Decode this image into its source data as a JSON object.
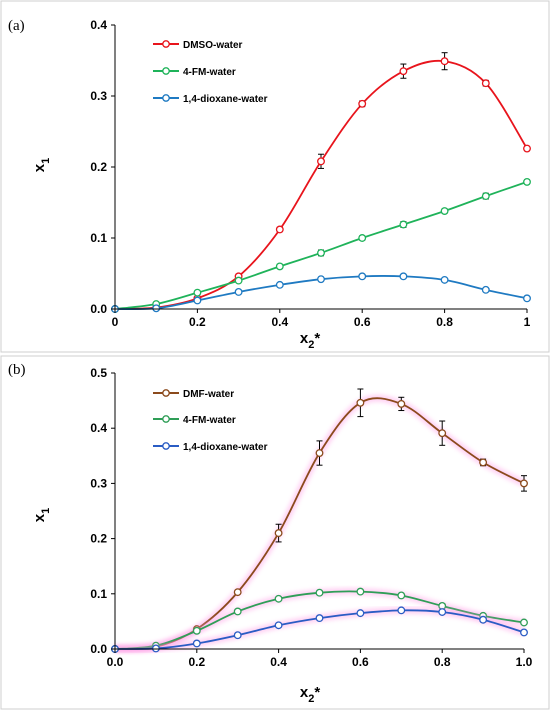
{
  "chart_data": [
    {
      "type": "line",
      "panel_label": "(a)",
      "xlabel": "x",
      "xlabel_sub": "2",
      "xlabel_suffix": "*",
      "ylabel": "x",
      "ylabel_sub": "1",
      "xlim": [
        0,
        1
      ],
      "ylim": [
        0,
        0.4
      ],
      "x_ticks": [
        0,
        0.2,
        0.4,
        0.6,
        0.8,
        1
      ],
      "x_tick_labels": [
        "0",
        "0.2",
        "0.4",
        "0.6",
        "0.8",
        "1"
      ],
      "y_ticks": [
        0,
        0.1,
        0.2,
        0.3,
        0.4
      ],
      "y_tick_labels": [
        "0.0",
        "0.1",
        "0.2",
        "0.3",
        "0.4"
      ],
      "grid": false,
      "legend_position": "top-left",
      "series": [
        {
          "name": "DMSO-water",
          "color": "#e8141c",
          "x": [
            0,
            0.1,
            0.2,
            0.3,
            0.4,
            0.5,
            0.6,
            0.7,
            0.8,
            0.9,
            1
          ],
          "y": [
            0,
            0.002,
            0.015,
            0.046,
            0.112,
            0.208,
            0.289,
            0.335,
            0.349,
            0.318,
            0.226
          ],
          "err": [
            0,
            0,
            0,
            0.003,
            0.003,
            0.01,
            0.004,
            0.01,
            0.012,
            0.004,
            0.003
          ]
        },
        {
          "name": "4-FM-water",
          "color": "#1fb35a",
          "x": [
            0,
            0.1,
            0.2,
            0.3,
            0.4,
            0.5,
            0.6,
            0.7,
            0.8,
            0.9,
            1
          ],
          "y": [
            0,
            0.007,
            0.023,
            0.04,
            0.06,
            0.079,
            0.1,
            0.119,
            0.138,
            0.159,
            0.179
          ],
          "err": [
            0,
            0,
            0,
            0,
            0.003,
            0.004,
            0.003,
            0.004,
            0.003,
            0.004,
            0.003
          ]
        },
        {
          "name": "1,4-dioxane-water",
          "color": "#1f7ac2",
          "x": [
            0,
            0.1,
            0.2,
            0.3,
            0.4,
            0.5,
            0.6,
            0.7,
            0.8,
            0.9,
            1
          ],
          "y": [
            0,
            0.001,
            0.012,
            0.024,
            0.034,
            0.042,
            0.046,
            0.046,
            0.041,
            0.027,
            0.015
          ],
          "err": [
            0,
            0,
            0,
            0,
            0,
            0,
            0,
            0.002,
            0.002,
            0,
            0
          ]
        }
      ]
    },
    {
      "type": "line",
      "panel_label": "(b)",
      "xlabel": "x",
      "xlabel_sub": "2",
      "xlabel_suffix": "*",
      "ylabel": "x",
      "ylabel_sub": "1",
      "xlim": [
        0,
        1
      ],
      "ylim": [
        0,
        0.5
      ],
      "x_ticks": [
        0,
        0.2,
        0.4,
        0.6,
        0.8,
        1
      ],
      "x_tick_labels": [
        "0.0",
        "0.2",
        "0.4",
        "0.6",
        "0.8",
        "1.0"
      ],
      "y_ticks": [
        0,
        0.1,
        0.2,
        0.3,
        0.4,
        0.5
      ],
      "y_tick_labels": [
        "0.0",
        "0.1",
        "0.2",
        "0.3",
        "0.4",
        "0.5"
      ],
      "grid": false,
      "legend_position": "top-left",
      "series": [
        {
          "name": "DMF-water",
          "color": "#8b4a1c",
          "x": [
            0,
            0.1,
            0.2,
            0.3,
            0.4,
            0.5,
            0.6,
            0.7,
            0.8,
            0.9,
            1
          ],
          "y": [
            0,
            0.004,
            0.036,
            0.103,
            0.21,
            0.355,
            0.446,
            0.444,
            0.391,
            0.338,
            0.3
          ],
          "err": [
            0,
            0,
            0.003,
            0.003,
            0.016,
            0.022,
            0.025,
            0.012,
            0.022,
            0.006,
            0.014
          ]
        },
        {
          "name": "4-FM-water",
          "color": "#2f9e57",
          "x": [
            0,
            0.1,
            0.2,
            0.3,
            0.4,
            0.5,
            0.6,
            0.7,
            0.8,
            0.9,
            1
          ],
          "y": [
            0,
            0.006,
            0.033,
            0.068,
            0.091,
            0.102,
            0.104,
            0.097,
            0.078,
            0.06,
            0.048
          ],
          "err": [
            0,
            0,
            0,
            0,
            0,
            0,
            0,
            0,
            0.004,
            0.004,
            0
          ]
        },
        {
          "name": "1,4-dioxane-water",
          "color": "#2a5cc4",
          "x": [
            0,
            0.1,
            0.2,
            0.3,
            0.4,
            0.5,
            0.6,
            0.7,
            0.8,
            0.9,
            1
          ],
          "y": [
            0,
            0.001,
            0.01,
            0.025,
            0.043,
            0.056,
            0.065,
            0.07,
            0.067,
            0.053,
            0.03
          ],
          "err": [
            0,
            0,
            0,
            0,
            0,
            0,
            0,
            0.002,
            0.003,
            0.004,
            0.003
          ]
        }
      ]
    }
  ]
}
